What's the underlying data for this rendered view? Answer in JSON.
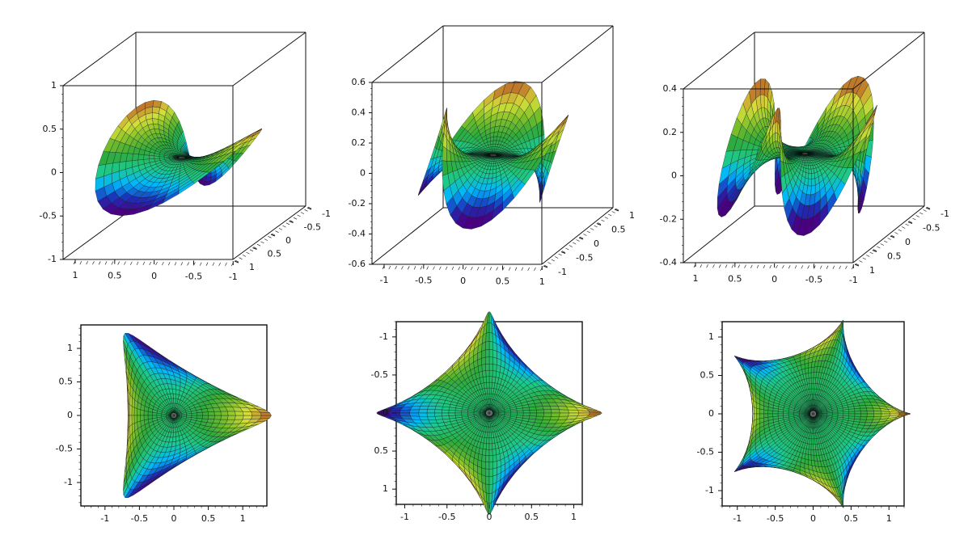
{
  "colors": {
    "background": "#ffffff",
    "frame": "#111111",
    "mesh": "#0a1a1a",
    "gradient": [
      "#4b0082",
      "#1c2fb8",
      "#00b7ff",
      "#1ec98a",
      "#2faa3c",
      "#7fbf2a",
      "#d8e03a",
      "#c0782a"
    ]
  },
  "chart_data": [
    {
      "type": "surface3d",
      "panel": "top-left",
      "n": 2,
      "zlim": [
        -1,
        1
      ],
      "z_ticks": [
        "1",
        "0.5",
        "0",
        "-0.5",
        "-1"
      ],
      "x_ticks": [
        "1",
        "0.5",
        "0",
        "-0.5",
        "-1"
      ],
      "y_ticks": [
        "-1",
        "-0.5",
        "0",
        "0.5",
        "1"
      ]
    },
    {
      "type": "surface3d",
      "panel": "top-middle",
      "n": 3,
      "zlim": [
        -0.6,
        0.6
      ],
      "z_ticks": [
        "0.6",
        "0.4",
        "0.2",
        "0",
        "-0.2",
        "-0.4",
        "-0.6"
      ],
      "x_ticks": [
        "-1",
        "-0.5",
        "0",
        "0.5",
        "1"
      ],
      "y_ticks": [
        "1",
        "0.5",
        "0",
        "-0.5",
        "-1"
      ]
    },
    {
      "type": "surface3d",
      "panel": "top-right",
      "n": 4,
      "zlim": [
        -0.4,
        0.4
      ],
      "z_ticks": [
        "0.4",
        "0.2",
        "0",
        "-0.2",
        "-0.4"
      ],
      "x_ticks": [
        "1",
        "0.5",
        "0",
        "-0.5",
        "-1"
      ],
      "y_ticks": [
        "-1",
        "-0.5",
        "0",
        "0.5",
        "1"
      ]
    },
    {
      "type": "heatmap",
      "panel": "bottom-left",
      "n": 2,
      "xlim": [
        -1.35,
        1.35
      ],
      "ylim": [
        -1.35,
        1.35
      ],
      "x_ticks": [
        "-1",
        "-0.5",
        "0",
        "0.5",
        "1"
      ],
      "y_ticks": [
        "1",
        "0.5",
        "0",
        "-0.5",
        "-1"
      ]
    },
    {
      "type": "heatmap",
      "panel": "bottom-middle",
      "n": 3,
      "xlim": [
        -1.1,
        1.1
      ],
      "ylim": [
        -1.2,
        1.2
      ],
      "x_ticks": [
        "-1",
        "-0.5",
        "0",
        "0.5",
        "1"
      ],
      "y_ticks": [
        "-1",
        "-0.5",
        "0",
        "0.5",
        "1"
      ]
    },
    {
      "type": "heatmap",
      "panel": "bottom-right",
      "n": 4,
      "xlim": [
        -1.2,
        1.2
      ],
      "ylim": [
        -1.2,
        1.2
      ],
      "x_ticks": [
        "-1",
        "-0.5",
        "0",
        "0.5",
        "1"
      ],
      "y_ticks": [
        "1",
        "0.5",
        "0",
        "-0.5",
        "-1"
      ]
    }
  ]
}
